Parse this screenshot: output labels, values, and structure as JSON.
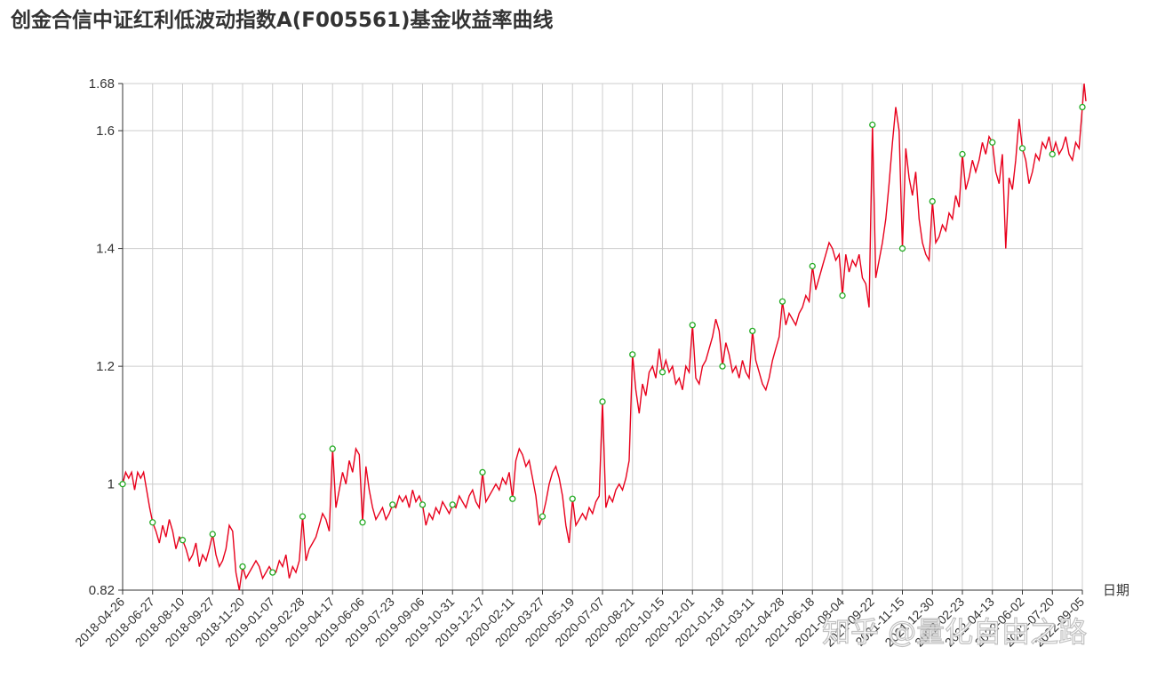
{
  "chart_data": {
    "type": "line",
    "title": "创金合信中证红利低波动指数A(F005561)基金收益率曲线",
    "xlabel": "日期",
    "ylabel": "",
    "ylim": [
      0.82,
      1.68
    ],
    "y_ticks": [
      "0.82",
      "1",
      "1.2",
      "1.4",
      "1.6",
      "1.68"
    ],
    "x_ticks": [
      "2018-04-26",
      "2018-06-27",
      "2018-08-10",
      "2018-09-27",
      "2018-11-20",
      "2019-01-07",
      "2019-02-28",
      "2019-04-17",
      "2019-06-06",
      "2019-07-23",
      "2019-09-06",
      "2019-10-31",
      "2019-12-17",
      "2020-02-11",
      "2020-03-27",
      "2020-05-19",
      "2020-07-07",
      "2020-08-21",
      "2020-10-15",
      "2020-12-01",
      "2021-01-18",
      "2021-03-11",
      "2021-04-28",
      "2021-06-18",
      "2021-08-04",
      "2021-09-22",
      "2021-11-15",
      "2021-12-30",
      "2022-02-23",
      "2022-04-13",
      "2022-06-02",
      "2022-07-20",
      "2022-09-05"
    ],
    "grid": true,
    "line_color": "#e8001c",
    "marker_color": "#22aa22",
    "series": [
      {
        "name": "",
        "values": [
          1.0,
          0.935,
          0.905,
          0.915,
          0.86,
          0.85,
          0.945,
          1.06,
          0.935,
          0.965,
          0.965,
          0.965,
          1.02,
          0.975,
          0.945,
          0.975,
          1.14,
          1.22,
          1.19,
          1.27,
          1.2,
          1.26,
          1.31,
          1.37,
          1.32,
          1.61,
          1.4,
          1.48,
          1.56,
          1.58,
          1.57,
          1.56,
          1.64
        ],
        "intermediate": [
          [
            1.02,
            1.01,
            1.02,
            0.99,
            1.02,
            1.01,
            1.02,
            0.99,
            0.96
          ],
          [
            0.92,
            0.9,
            0.93,
            0.91,
            0.94,
            0.92,
            0.89,
            0.91
          ],
          [
            0.89,
            0.87,
            0.88,
            0.9,
            0.86,
            0.88,
            0.87,
            0.89
          ],
          [
            0.88,
            0.86,
            0.87,
            0.89,
            0.93,
            0.92,
            0.85,
            0.82
          ],
          [
            0.84,
            0.85,
            0.86,
            0.87,
            0.86,
            0.84,
            0.85,
            0.86
          ],
          [
            0.85,
            0.87,
            0.86,
            0.88,
            0.84,
            0.86,
            0.85,
            0.87
          ],
          [
            0.87,
            0.89,
            0.9,
            0.91,
            0.93,
            0.95,
            0.94,
            0.92
          ],
          [
            0.96,
            0.99,
            1.02,
            1.0,
            1.04,
            1.02,
            1.06,
            1.05
          ],
          [
            1.03,
            0.99,
            0.96,
            0.94,
            0.95,
            0.96,
            0.94,
            0.95
          ],
          [
            0.96,
            0.98,
            0.97,
            0.98,
            0.96,
            0.99,
            0.97,
            0.98
          ],
          [
            0.93,
            0.95,
            0.94,
            0.96,
            0.95,
            0.97,
            0.96,
            0.95
          ],
          [
            0.96,
            0.98,
            0.97,
            0.96,
            0.98,
            0.99,
            0.97,
            0.96
          ],
          [
            0.97,
            0.98,
            0.99,
            1.0,
            0.99,
            1.01,
            1.0,
            1.02
          ],
          [
            1.04,
            1.06,
            1.05,
            1.03,
            1.04,
            1.01,
            0.98,
            0.93
          ],
          [
            0.97,
            1.0,
            1.02,
            1.03,
            1.01,
            0.98,
            0.93,
            0.9
          ],
          [
            0.93,
            0.94,
            0.95,
            0.94,
            0.96,
            0.95,
            0.97,
            0.98
          ],
          [
            0.96,
            0.98,
            0.97,
            0.99,
            1.0,
            0.99,
            1.01,
            1.04
          ],
          [
            1.16,
            1.12,
            1.17,
            1.15,
            1.19,
            1.2,
            1.18,
            1.23
          ],
          [
            1.21,
            1.19,
            1.2,
            1.17,
            1.18,
            1.16,
            1.2,
            1.19
          ],
          [
            1.18,
            1.17,
            1.2,
            1.21,
            1.23,
            1.25,
            1.28,
            1.26
          ],
          [
            1.24,
            1.22,
            1.19,
            1.2,
            1.18,
            1.21,
            1.19,
            1.18
          ],
          [
            1.21,
            1.19,
            1.17,
            1.16,
            1.18,
            1.21,
            1.23,
            1.25
          ],
          [
            1.27,
            1.29,
            1.28,
            1.27,
            1.29,
            1.3,
            1.32,
            1.31
          ],
          [
            1.33,
            1.35,
            1.37,
            1.39,
            1.41,
            1.4,
            1.38,
            1.39
          ],
          [
            1.39,
            1.36,
            1.38,
            1.37,
            1.39,
            1.35,
            1.34,
            1.3
          ],
          [
            1.35,
            1.38,
            1.41,
            1.45,
            1.51,
            1.58,
            1.64,
            1.6
          ],
          [
            1.57,
            1.52,
            1.49,
            1.53,
            1.45,
            1.41,
            1.39,
            1.38
          ],
          [
            1.41,
            1.42,
            1.44,
            1.43,
            1.46,
            1.45,
            1.49,
            1.47
          ],
          [
            1.5,
            1.52,
            1.55,
            1.53,
            1.55,
            1.58,
            1.56,
            1.59
          ],
          [
            1.53,
            1.51,
            1.56,
            1.4,
            1.52,
            1.5,
            1.55,
            1.62
          ],
          [
            1.55,
            1.51,
            1.53,
            1.56,
            1.55,
            1.58,
            1.57,
            1.59
          ],
          [
            1.58,
            1.56,
            1.57,
            1.59,
            1.56,
            1.55,
            1.58,
            1.57
          ],
          [
            1.53,
            1.49,
            1.51,
            1.55,
            1.54,
            1.57,
            1.59,
            1.61
          ]
        ],
        "end": [
          1.68,
          1.65
        ]
      }
    ]
  },
  "watermark": "知乎 @量化自由之路"
}
